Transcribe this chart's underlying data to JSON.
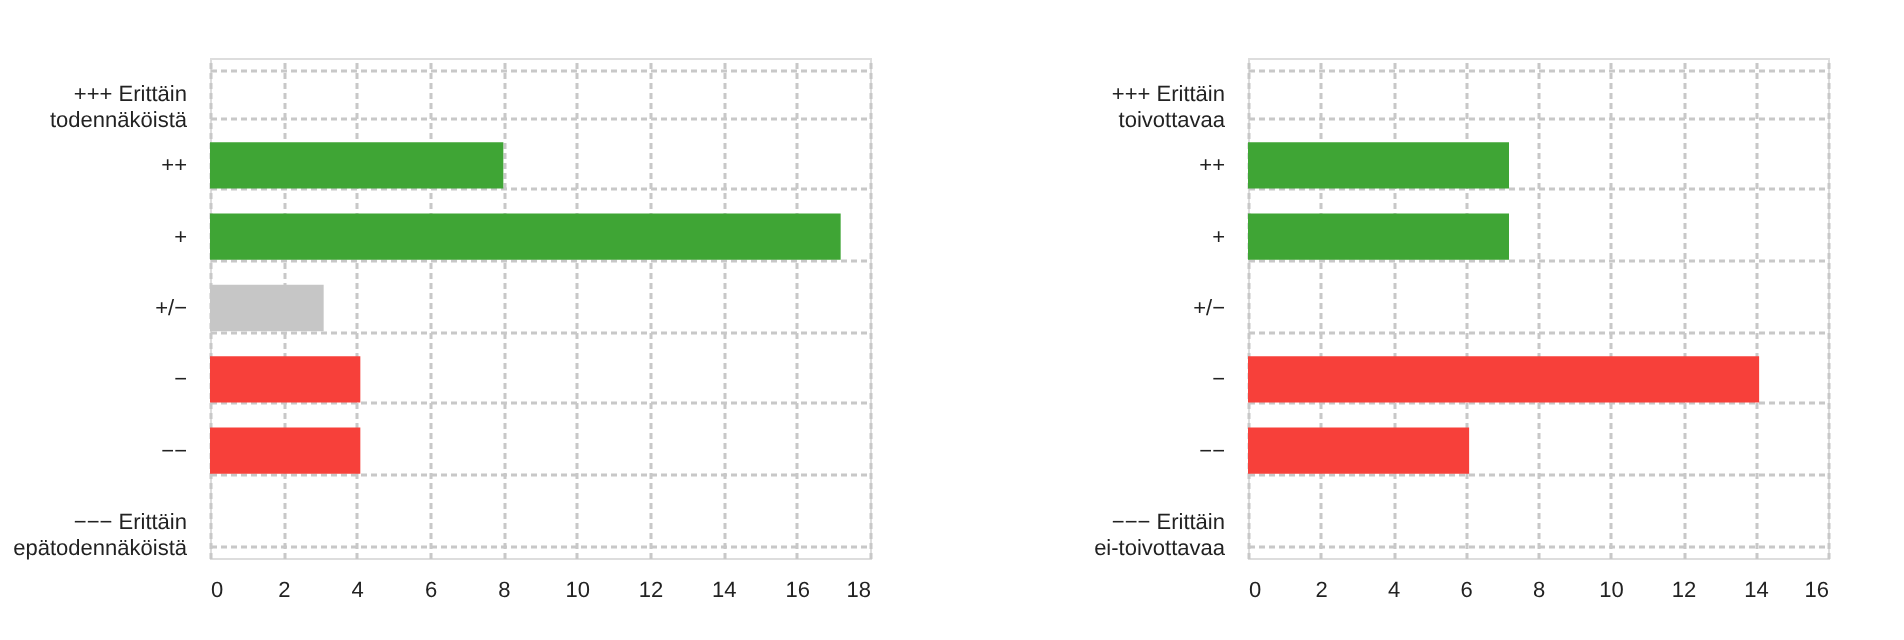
{
  "chart_data": [
    {
      "type": "bar",
      "orientation": "horizontal",
      "categories": [
        "+++ Erittäin\ntodennäköistä",
        "++",
        "+",
        "+/−",
        "−",
        "−−",
        "−−− Erittäin\nepätodennäköistä"
      ],
      "values": [
        null,
        8,
        17.2,
        3.1,
        4.1,
        4.1,
        null
      ],
      "colors": [
        null,
        "#3fa535",
        "#3fa535",
        "#c6c6c6",
        "#f7403a",
        "#f7403a",
        null
      ],
      "xlim": [
        0,
        18
      ],
      "xticks": [
        0,
        2,
        4,
        6,
        8,
        10,
        12,
        14,
        16,
        18
      ],
      "grid": true
    },
    {
      "type": "bar",
      "orientation": "horizontal",
      "categories": [
        "+++ Erittäin\ntoivottavaa",
        "++",
        "+",
        "+/−",
        "−",
        "−−",
        "−−− Erittäin\nei-toivottavaa"
      ],
      "values": [
        null,
        7.2,
        7.2,
        null,
        14.1,
        6.1,
        null
      ],
      "colors": [
        null,
        "#3fa535",
        "#3fa535",
        null,
        "#f7403a",
        "#f7403a",
        null
      ],
      "xlim": [
        0,
        16
      ],
      "xticks": [
        0,
        2,
        4,
        6,
        8,
        10,
        12,
        14,
        16
      ],
      "grid": true
    }
  ]
}
